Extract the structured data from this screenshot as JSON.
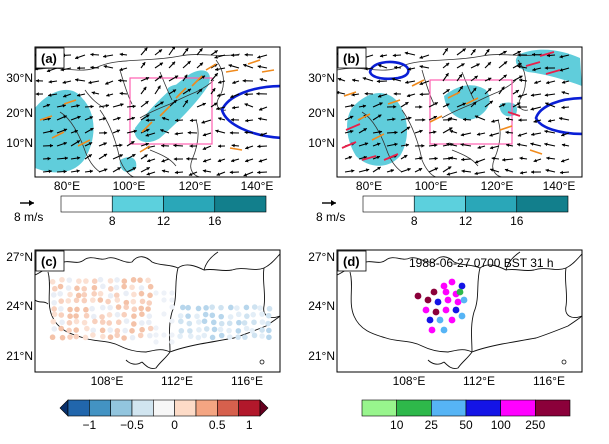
{
  "panels": [
    {
      "id": "a",
      "label": "(a)",
      "lat_ticks": [
        "30°N",
        "20°N",
        "10°N"
      ],
      "lon_ticks": [
        "80°E",
        "100°E",
        "120°E",
        "140°E"
      ]
    },
    {
      "id": "b",
      "label": "(b)",
      "lat_ticks": [
        "30°N",
        "20°N",
        "10°N"
      ],
      "lon_ticks": [
        "80°E",
        "100°E",
        "120°E",
        "140°E"
      ]
    },
    {
      "id": "c",
      "label": "(c)",
      "lat_ticks": [
        "27°N",
        "24°N",
        "21°N"
      ],
      "lon_ticks": [
        "108°E",
        "112°E",
        "116°E"
      ]
    },
    {
      "id": "d",
      "label": "(d)",
      "annotation": "1988-06-27 0700 BST 31 h",
      "lat_ticks": [
        "27°N",
        "24°N",
        "21°N"
      ],
      "lon_ticks": [
        "108°E",
        "112°E",
        "116°E"
      ]
    }
  ],
  "wind_reference": {
    "label": "8 m/s"
  },
  "colorbars": {
    "wind_speed": {
      "ticks": [
        "8",
        "12",
        "16"
      ],
      "colors": [
        "#ffffff",
        "#5cd0dd",
        "#2aa7b8",
        "#127f8c"
      ]
    },
    "correlation": {
      "ticks": [
        "−1",
        "−0.5",
        "0",
        "0.5",
        "1"
      ],
      "colors": [
        "#08306b",
        "#2166ac",
        "#4393c3",
        "#92c5de",
        "#d1e5f0",
        "#f7f7f7",
        "#fddbc7",
        "#f4a582",
        "#d6604d",
        "#b2182b",
        "#67001f"
      ]
    },
    "rainfall": {
      "ticks": [
        "10",
        "25",
        "50",
        "100",
        "250"
      ],
      "colors": [
        "#98f58d",
        "#2eb84a",
        "#56b4f5",
        "#1414e6",
        "#ff00ff",
        "#8b003a"
      ]
    }
  },
  "colors": {
    "vectors": "#000000",
    "orange_vectors": "#f08a1c",
    "red_vectors": "#e8204a",
    "subtropical_high_contour": "#0a1fd6",
    "box": "#ff5fb0",
    "shading": "#4fc8d8"
  }
}
